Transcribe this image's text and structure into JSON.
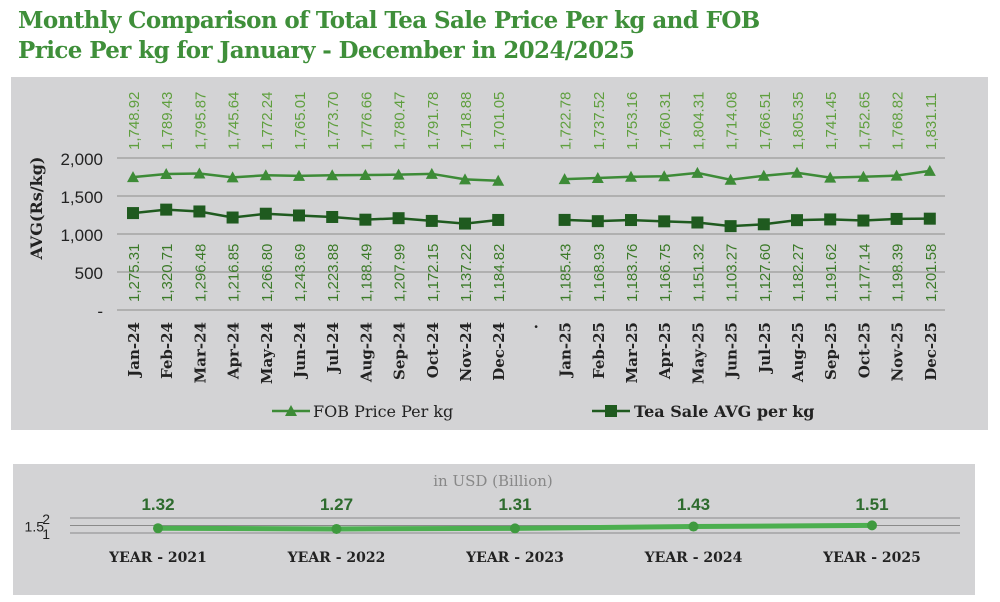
{
  "title_lines": [
    "Monthly Comparison of Total Tea Sale Price Per kg and FOB",
    "Price Per kg for January - December in 2024/2025"
  ],
  "colors": {
    "fob": "#3d8b37",
    "fob_label": "#5f9f3e",
    "tea": "#1f5a1f",
    "tea_label": "#3b7a28",
    "panel": "#d3d3d5",
    "usd_line": "#4caf50",
    "usd_label": "#2e6b2e",
    "title": "#3f8f3a"
  },
  "chart_data": [
    {
      "type": "line",
      "ylabel": "AVG(Rs/kg)",
      "ylim": [
        0,
        2000
      ],
      "yticks": [
        0,
        500,
        1000,
        1500,
        2000
      ],
      "ytick_labels": [
        "-",
        "500",
        "1,000",
        "1,500",
        "2,000"
      ],
      "grid": true,
      "legend": "bottom",
      "categories": [
        "Jan-24",
        "Feb-24",
        "Mar-24",
        "Apr-24",
        "May-24",
        "Jun-24",
        "Jul-24",
        "Aug-24",
        "Sep-24",
        "Oct-24",
        "Nov-24",
        "Dec-24",
        ".",
        "Jan-25",
        "Feb-25",
        "Mar-25",
        "Apr-25",
        "May-25",
        "Jun-25",
        "Jul-25",
        "Aug-25",
        "Sep-25",
        "Oct-25",
        "Nov-25",
        "Dec-25"
      ],
      "series": [
        {
          "name": "FOB Price Per kg",
          "marker": "triangle",
          "values": [
            1748.92,
            1789.43,
            1795.87,
            1745.64,
            1772.24,
            1765.01,
            1773.7,
            1776.66,
            1780.47,
            1791.78,
            1718.88,
            1701.05,
            null,
            1722.78,
            1737.52,
            1753.16,
            1760.31,
            1804.31,
            1714.08,
            1766.51,
            1805.35,
            1741.45,
            1752.65,
            1768.82,
            1831.11
          ],
          "labels": [
            "1,748.92",
            "1,789.43",
            "1,795.87",
            "1,745.64",
            "1,772.24",
            "1,765.01",
            "1,773.70",
            "1,776.66",
            "1,780.47",
            "1,791.78",
            "1,718.88",
            "1,701.05",
            "",
            "1,722.78",
            "1,737.52",
            "1,753.16",
            "1,760.31",
            "1,804.31",
            "1,714.08",
            "1,766.51",
            "1,805.35",
            "1,741.45",
            "1,752.65",
            "1,768.82",
            "1,831.11"
          ]
        },
        {
          "name": "Tea Sale AVG per kg",
          "marker": "square",
          "values": [
            1275.31,
            1320.71,
            1296.48,
            1216.85,
            1266.8,
            1243.69,
            1223.88,
            1188.49,
            1207.99,
            1172.15,
            1137.22,
            1184.82,
            null,
            1185.43,
            1168.93,
            1183.76,
            1166.75,
            1151.32,
            1103.27,
            1127.6,
            1182.27,
            1191.62,
            1177.14,
            1198.39,
            1201.58
          ],
          "labels": [
            "1,275.31",
            "1,320.71",
            "1,296.48",
            "1,216.85",
            "1,266.80",
            "1,243.69",
            "1,223.88",
            "1,188.49",
            "1,207.99",
            "1,172.15",
            "1,137.22",
            "1,184.82",
            "",
            "1,185.43",
            "1,168.93",
            "1,183.76",
            "1,166.75",
            "1,151.32",
            "1,103.27",
            "1,127.60",
            "1,182.27",
            "1,191.62",
            "1,177.14",
            "1,198.39",
            "1,201.58"
          ]
        }
      ]
    },
    {
      "type": "line",
      "title": "in USD (Billion)",
      "ylim": [
        1,
        2
      ],
      "yticks": [
        1,
        1.5,
        2
      ],
      "ytick_labels": [
        "1",
        "1.5",
        "2"
      ],
      "grid": true,
      "categories": [
        "YEAR - 2021",
        "YEAR - 2022",
        "YEAR - 2023",
        "YEAR - 2024",
        "YEAR - 2025"
      ],
      "values": [
        1.32,
        1.27,
        1.31,
        1.43,
        1.51
      ],
      "labels": [
        "1.32",
        "1.27",
        "1.31",
        "1.43",
        "1.51"
      ]
    }
  ]
}
